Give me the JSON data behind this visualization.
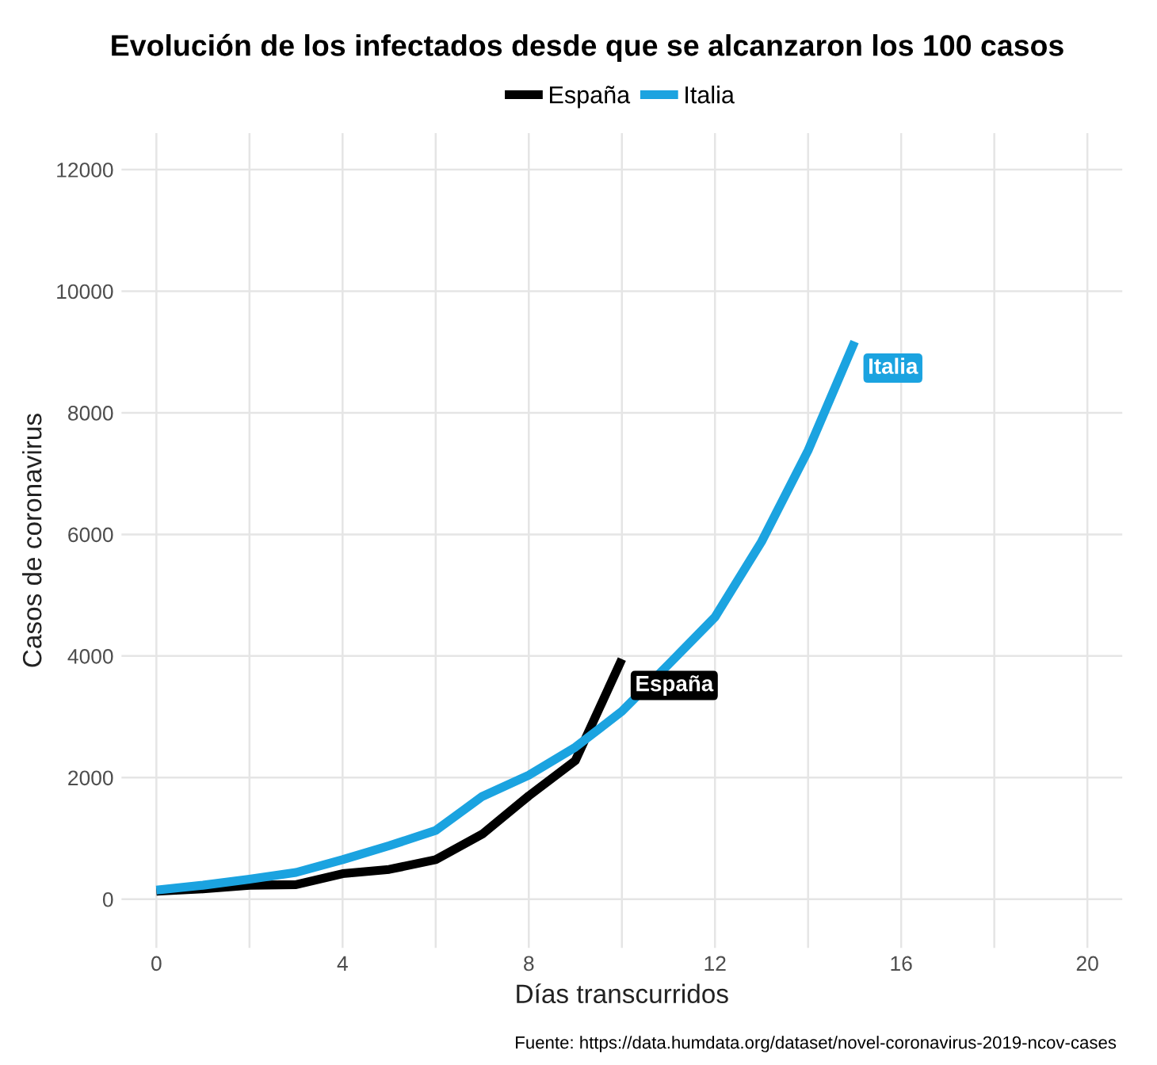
{
  "chart_data": {
    "type": "line",
    "title": "Evolución de los infectados desde que se alcanzaron los 100 casos",
    "xlabel": "Días transcurridos",
    "ylabel": "Casos de coronavirus",
    "annotations": [
      "Fuente: https://data.humdata.org/dataset/novel-coronavirus-2019-ncov-cases"
    ],
    "series": [
      {
        "name": "España",
        "color": "#000000",
        "x": [
          0,
          1,
          2,
          3,
          4,
          5,
          6,
          7,
          8,
          9,
          10
        ],
        "values": [
          130,
          170,
          230,
          240,
          420,
          490,
          650,
          1070,
          1700,
          2280,
          3950
        ]
      },
      {
        "name": "Italia",
        "color": "#1ba3e0",
        "x": [
          0,
          1,
          2,
          3,
          4,
          5,
          6,
          7,
          8,
          9,
          10,
          11,
          12,
          13,
          14,
          15
        ],
        "values": [
          150,
          230,
          330,
          440,
          650,
          880,
          1130,
          1690,
          2040,
          2500,
          3090,
          3860,
          4640,
          5880,
          7380,
          9170
        ]
      }
    ],
    "xlim": [
      -0.75,
      20.75
    ],
    "ylim": [
      -800,
      12600
    ],
    "xticks": [
      0,
      {
        "value": 2,
        "label": null
      },
      4,
      {
        "value": 6,
        "label": null
      },
      8,
      {
        "value": 10,
        "label": null
      },
      12,
      {
        "value": 14,
        "label": null
      },
      16,
      {
        "value": 18,
        "label": null
      },
      20
    ],
    "yticks": [
      0,
      {
        "value": 2000,
        "label": "2000"
      },
      4000,
      {
        "value": 6000,
        "label": "6000"
      },
      8000,
      {
        "value": 10000,
        "label": "10000"
      },
      12000
    ],
    "grid": true,
    "legend": "top",
    "line_style": "solid",
    "marker": "none"
  }
}
